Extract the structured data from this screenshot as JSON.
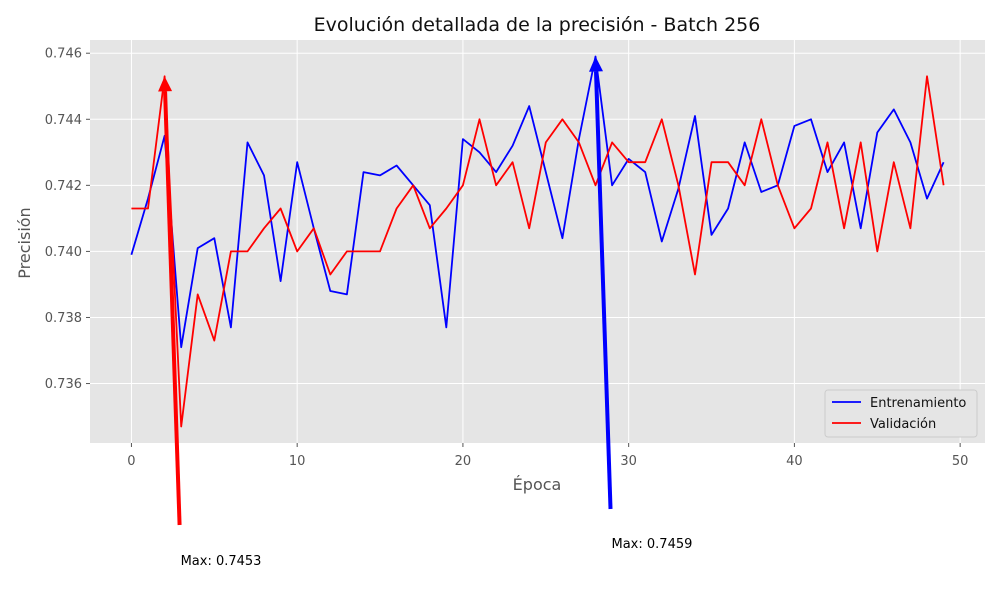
{
  "chart_data": {
    "type": "line",
    "title": "Evolución detallada de la precisión - Batch 256",
    "xlabel": "Época",
    "ylabel": "Precisión",
    "xlim": [
      -2.5,
      51.5
    ],
    "ylim": [
      0.7342,
      0.7464
    ],
    "xticks": [
      0,
      10,
      20,
      30,
      40,
      50
    ],
    "yticks": [
      0.736,
      0.738,
      0.74,
      0.742,
      0.744,
      0.746
    ],
    "ytick_labels": [
      "0.736",
      "0.738",
      "0.740",
      "0.742",
      "0.744",
      "0.746"
    ],
    "grid": true,
    "legend_position": "lower-right",
    "x": [
      0,
      1,
      2,
      3,
      4,
      5,
      6,
      7,
      8,
      9,
      10,
      11,
      12,
      13,
      14,
      15,
      16,
      17,
      18,
      19,
      20,
      21,
      22,
      23,
      24,
      25,
      26,
      27,
      28,
      29,
      30,
      31,
      32,
      33,
      34,
      35,
      36,
      37,
      38,
      39,
      40,
      41,
      42,
      43,
      44,
      45,
      46,
      47,
      48,
      49
    ],
    "series": [
      {
        "name": "Entrenamiento",
        "color": "#0000ff",
        "values": [
          0.7399,
          0.7416,
          0.7435,
          0.7371,
          0.7401,
          0.7404,
          0.7377,
          0.7433,
          0.7423,
          0.7391,
          0.7427,
          0.7407,
          0.7388,
          0.7387,
          0.7424,
          0.7423,
          0.7426,
          0.742,
          0.7414,
          0.7377,
          0.7434,
          0.743,
          0.7424,
          0.7432,
          0.7444,
          0.7424,
          0.7404,
          0.7434,
          0.7459,
          0.742,
          0.7428,
          0.7424,
          0.7403,
          0.7419,
          0.7441,
          0.7405,
          0.7413,
          0.7433,
          0.7418,
          0.742,
          0.7438,
          0.744,
          0.7424,
          0.7433,
          0.7407,
          0.7436,
          0.7443,
          0.7433,
          0.7416,
          0.7427
        ]
      },
      {
        "name": "Validación",
        "color": "#ff0000",
        "values": [
          0.7413,
          0.7413,
          0.7453,
          0.7347,
          0.7387,
          0.7373,
          0.74,
          0.74,
          0.7407,
          0.7413,
          0.74,
          0.7407,
          0.7393,
          0.74,
          0.74,
          0.74,
          0.7413,
          0.742,
          0.7407,
          0.7413,
          0.742,
          0.744,
          0.742,
          0.7427,
          0.7407,
          0.7433,
          0.744,
          0.7433,
          0.742,
          0.7433,
          0.7427,
          0.7427,
          0.744,
          0.742,
          0.7393,
          0.7427,
          0.7427,
          0.742,
          0.744,
          0.742,
          0.7407,
          0.7413,
          0.7433,
          0.7407,
          0.7433,
          0.74,
          0.7427,
          0.7407,
          0.7453,
          0.742
        ]
      }
    ],
    "annotations": [
      {
        "series": 1,
        "x": 2,
        "y": 0.7453,
        "text": "Max: 0.7453",
        "color": "#ff0000"
      },
      {
        "series": 0,
        "x": 28,
        "y": 0.7459,
        "text": "Max: 0.7459",
        "color": "#0000ff"
      }
    ]
  }
}
